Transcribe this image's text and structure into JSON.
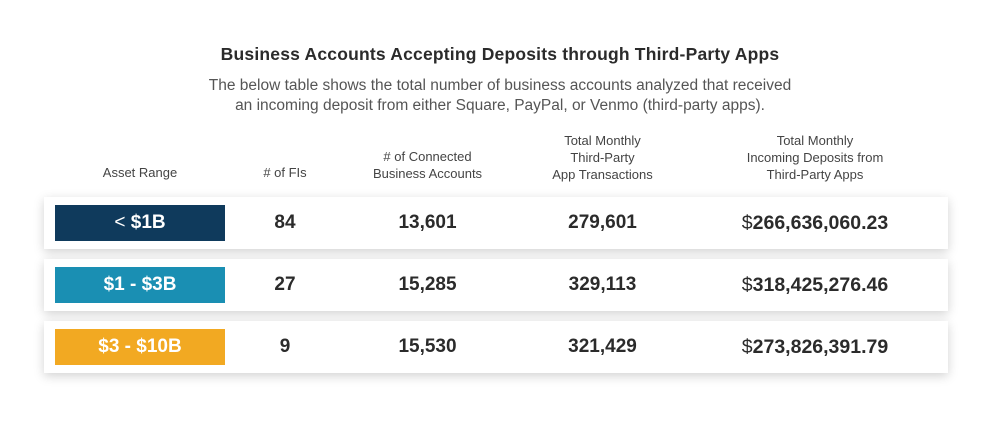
{
  "title": "Business Accounts Accepting Deposits through Third-Party Apps",
  "subtitle": [
    "The below table shows the total number of business accounts analyzed that received",
    "an incoming deposit from either Square, PayPal, or Venmo (third-party apps)."
  ],
  "headers": {
    "asset_range": "Asset Range",
    "num_fis": "# of FIs",
    "connected_accounts": [
      "# of Connected",
      "Business Accounts"
    ],
    "app_transactions": [
      "Total Monthly",
      "Third-Party",
      "App Transactions"
    ],
    "incoming_deposits": [
      "Total Monthly",
      "Incoming Deposits from",
      "Third-Party Apps"
    ]
  },
  "rows": [
    {
      "asset_range_prefix": "< ",
      "asset_range_bold": "$1B",
      "color": "#0f3a5c",
      "num_fis": "84",
      "connected_accounts": "13,601",
      "app_transactions": "279,601",
      "deposits_symbol": "$",
      "deposits_amount": "266,636,060.23"
    },
    {
      "asset_range_prefix": "",
      "asset_range_bold": "$1 - $3B",
      "color": "#1a8fb3",
      "num_fis": "27",
      "connected_accounts": "15,285",
      "app_transactions": "329,113",
      "deposits_symbol": "$",
      "deposits_amount": "318,425,276.46"
    },
    {
      "asset_range_prefix": "",
      "asset_range_bold": "$3 - $10B",
      "color": "#f2a922",
      "num_fis": "9",
      "connected_accounts": "15,530",
      "app_transactions": "321,429",
      "deposits_symbol": "$",
      "deposits_amount": "273,826,391.79"
    }
  ]
}
